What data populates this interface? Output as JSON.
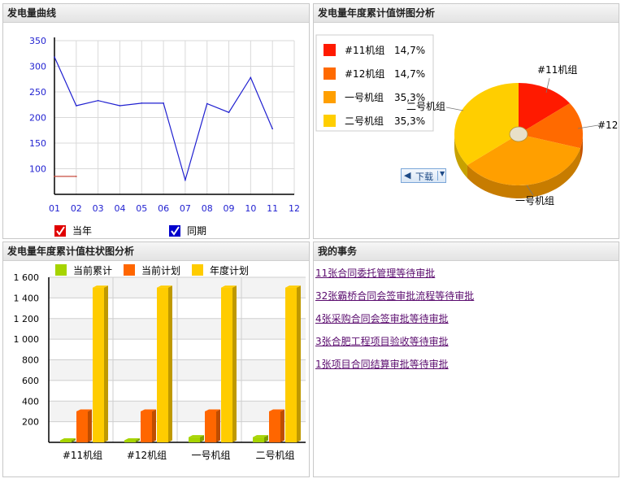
{
  "panels": {
    "curve_title": "发电量曲线",
    "pie_title": "发电量年度累计值饼图分析",
    "bar_title": "发电量年度累计值柱状图分析",
    "todo_title": "我的事务"
  },
  "download_label": "下载",
  "line_legend": {
    "current": "当年",
    "previous": "同期"
  },
  "todo_items": [
    "11张合同委托管理等待审批",
    "32张霸桥合同会签审批流程等待审批",
    "4张采购合同会签审批等待审批",
    "3张合肥工程项目验收等待审批",
    "1张项目合同结算审批等待审批"
  ],
  "colors": {
    "line": "#1f1fd0",
    "prev_line": "#c0392b",
    "grid": "#d9d9d9",
    "link": "#5a0b6e"
  },
  "chart_data": [
    {
      "type": "line",
      "title": "",
      "x": [
        "01",
        "02",
        "03",
        "04",
        "05",
        "06",
        "07",
        "08",
        "09",
        "10",
        "11",
        "12"
      ],
      "ylim": [
        50,
        350
      ],
      "yticks": [
        100,
        150,
        200,
        250,
        300,
        350
      ],
      "series": [
        {
          "name": "当年",
          "values": [
            318,
            223,
            233,
            223,
            228,
            228,
            78,
            227,
            210,
            278,
            178,
            null
          ]
        },
        {
          "name": "同期",
          "values": [
            85,
            85,
            null,
            null,
            null,
            null,
            null,
            null,
            null,
            null,
            null,
            null
          ]
        }
      ],
      "legend_position": "bottom"
    },
    {
      "type": "pie",
      "title": "",
      "labels": [
        "#11机组",
        "#12机组",
        "一号机组",
        "二号机组"
      ],
      "values": [
        14.7,
        14.7,
        35.3,
        35.3
      ],
      "value_labels": [
        "14,7%",
        "14,7%",
        "35,3%",
        "35,3%"
      ],
      "colors": [
        "#ff1a00",
        "#ff6a00",
        "#ff9f00",
        "#ffce00"
      ],
      "legend_position": "top-left"
    },
    {
      "type": "bar",
      "title": "",
      "categories": [
        "#11机组",
        "#12机组",
        "一号机组",
        "二号机组"
      ],
      "series": [
        {
          "name": "当前累计",
          "values": [
            20,
            20,
            50,
            50
          ],
          "color": "#a6d400"
        },
        {
          "name": "当前计划",
          "values": [
            300,
            300,
            300,
            300
          ],
          "color": "#ff6600"
        },
        {
          "name": "年度计划",
          "values": [
            1500,
            1500,
            1500,
            1500
          ],
          "color": "#ffcc00"
        }
      ],
      "ylim": [
        0,
        1600
      ],
      "yticks": [
        "1 600",
        "1 400",
        "1 200",
        "1 000",
        "800",
        "600",
        "400",
        "200"
      ],
      "ytick_values": [
        1600,
        1400,
        1200,
        1000,
        800,
        600,
        400,
        200
      ],
      "legend_position": "top"
    }
  ]
}
